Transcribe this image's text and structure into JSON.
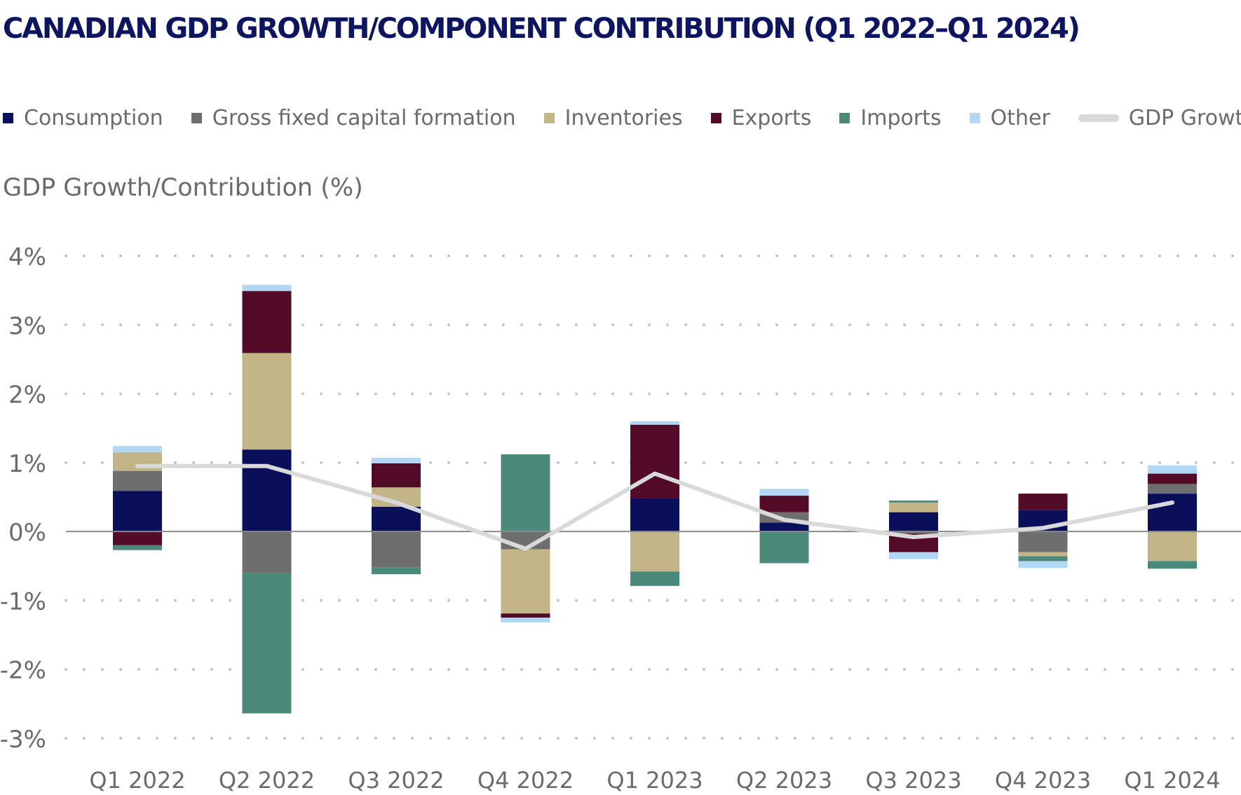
{
  "title": "CANADIAN GDP GROWTH/COMPONENT CONTRIBUTION (Q1 2022–Q1 2024)",
  "legend": [
    {
      "name": "Consumption",
      "color": "#0a0f5c",
      "kind": "box"
    },
    {
      "name": "Gross fixed capital formation",
      "color": "#6e6e6e",
      "kind": "box"
    },
    {
      "name": "Inventories",
      "color": "#c2b587",
      "kind": "box"
    },
    {
      "name": "Exports",
      "color": "#520b28",
      "kind": "box"
    },
    {
      "name": "Imports",
      "color": "#4b897b",
      "kind": "box"
    },
    {
      "name": "Other",
      "color": "#b2d7f5",
      "kind": "box"
    },
    {
      "name": "GDP Growth",
      "color": "#d9d9d9",
      "kind": "line"
    }
  ],
  "chart_data": {
    "type": "bar",
    "stacked": true,
    "title": "CANADIAN GDP GROWTH/COMPONENT CONTRIBUTION (Q1 2022–Q1 2024)",
    "xlabel": "",
    "ylabel": "GDP Growth/Contribution (%)",
    "ylim": [
      -3,
      4
    ],
    "yticks": [
      -3,
      -2,
      -1,
      0,
      1,
      2,
      3,
      4
    ],
    "ytick_labels": [
      "-3%",
      "-2%",
      "-1%",
      "0%",
      "1%",
      "2%",
      "3%",
      "4%"
    ],
    "grid": "horizontal-dotted",
    "legend_position": "top",
    "categories": [
      "Q1 2022",
      "Q2 2022",
      "Q3 2022",
      "Q4 2022",
      "Q1 2023",
      "Q2 2023",
      "Q3 2023",
      "Q4 2023",
      "Q1 2024"
    ],
    "series": [
      {
        "name": "Consumption",
        "color": "#0a0f5c",
        "values": [
          0.59,
          1.19,
          0.36,
          0.0,
          0.48,
          0.13,
          0.28,
          0.31,
          0.55
        ]
      },
      {
        "name": "Gross fixed capital formation",
        "color": "#6e6e6e",
        "values": [
          0.29,
          -0.6,
          -0.52,
          -0.26,
          0.0,
          0.15,
          -0.03,
          -0.3,
          0.14
        ]
      },
      {
        "name": "Inventories",
        "color": "#c2b587",
        "values": [
          0.27,
          1.4,
          0.28,
          -0.93,
          -0.58,
          0.0,
          0.14,
          -0.06,
          -0.43
        ]
      },
      {
        "name": "Exports",
        "color": "#520b28",
        "values": [
          -0.2,
          0.9,
          0.35,
          -0.06,
          1.07,
          0.24,
          -0.27,
          0.24,
          0.15
        ]
      },
      {
        "name": "Imports",
        "color": "#4b897b",
        "values": [
          -0.07,
          -2.04,
          -0.1,
          1.12,
          -0.21,
          -0.46,
          0.03,
          -0.07,
          -0.11
        ]
      },
      {
        "name": "Other",
        "color": "#b2d7f5",
        "values": [
          0.09,
          0.09,
          0.08,
          -0.07,
          0.05,
          0.1,
          -0.1,
          -0.1,
          0.12
        ]
      }
    ],
    "line": {
      "name": "GDP Growth",
      "color": "#d9d9d9",
      "values": [
        0.95,
        0.95,
        0.42,
        -0.25,
        0.84,
        0.17,
        -0.08,
        0.05,
        0.42
      ]
    }
  }
}
